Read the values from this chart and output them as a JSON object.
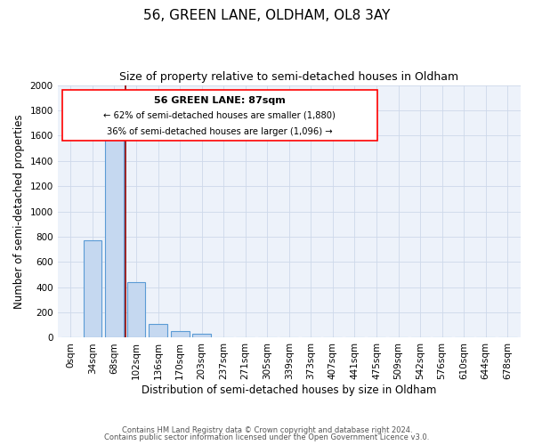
{
  "title": "56, GREEN LANE, OLDHAM, OL8 3AY",
  "subtitle": "Size of property relative to semi-detached houses in Oldham",
  "xlabel": "Distribution of semi-detached houses by size in Oldham",
  "ylabel": "Number of semi-detached properties",
  "bar_labels": [
    "0sqm",
    "34sqm",
    "68sqm",
    "102sqm",
    "136sqm",
    "170sqm",
    "203sqm",
    "237sqm",
    "271sqm",
    "305sqm",
    "339sqm",
    "373sqm",
    "407sqm",
    "441sqm",
    "475sqm",
    "509sqm",
    "542sqm",
    "576sqm",
    "610sqm",
    "644sqm",
    "678sqm"
  ],
  "bar_values": [
    0,
    770,
    1635,
    440,
    110,
    50,
    28,
    0,
    0,
    0,
    0,
    0,
    0,
    0,
    0,
    0,
    0,
    0,
    0,
    0,
    0
  ],
  "bar_color": "#c5d8f0",
  "bar_edge_color": "#5b9bd5",
  "ylim": [
    0,
    2000
  ],
  "yticks": [
    0,
    200,
    400,
    600,
    800,
    1000,
    1200,
    1400,
    1600,
    1800,
    2000
  ],
  "property_label": "56 GREEN LANE: 87sqm",
  "pct_smaller": 62,
  "count_smaller": 1880,
  "pct_larger": 36,
  "count_larger": 1096,
  "vline_x": 2.5,
  "footer_line1": "Contains HM Land Registry data © Crown copyright and database right 2024.",
  "footer_line2": "Contains public sector information licensed under the Open Government Licence v3.0.",
  "title_fontsize": 11,
  "subtitle_fontsize": 9,
  "axis_label_fontsize": 8.5,
  "tick_fontsize": 7.5,
  "grid_color": "#cdd8ea",
  "background_color": "#edf2fa"
}
